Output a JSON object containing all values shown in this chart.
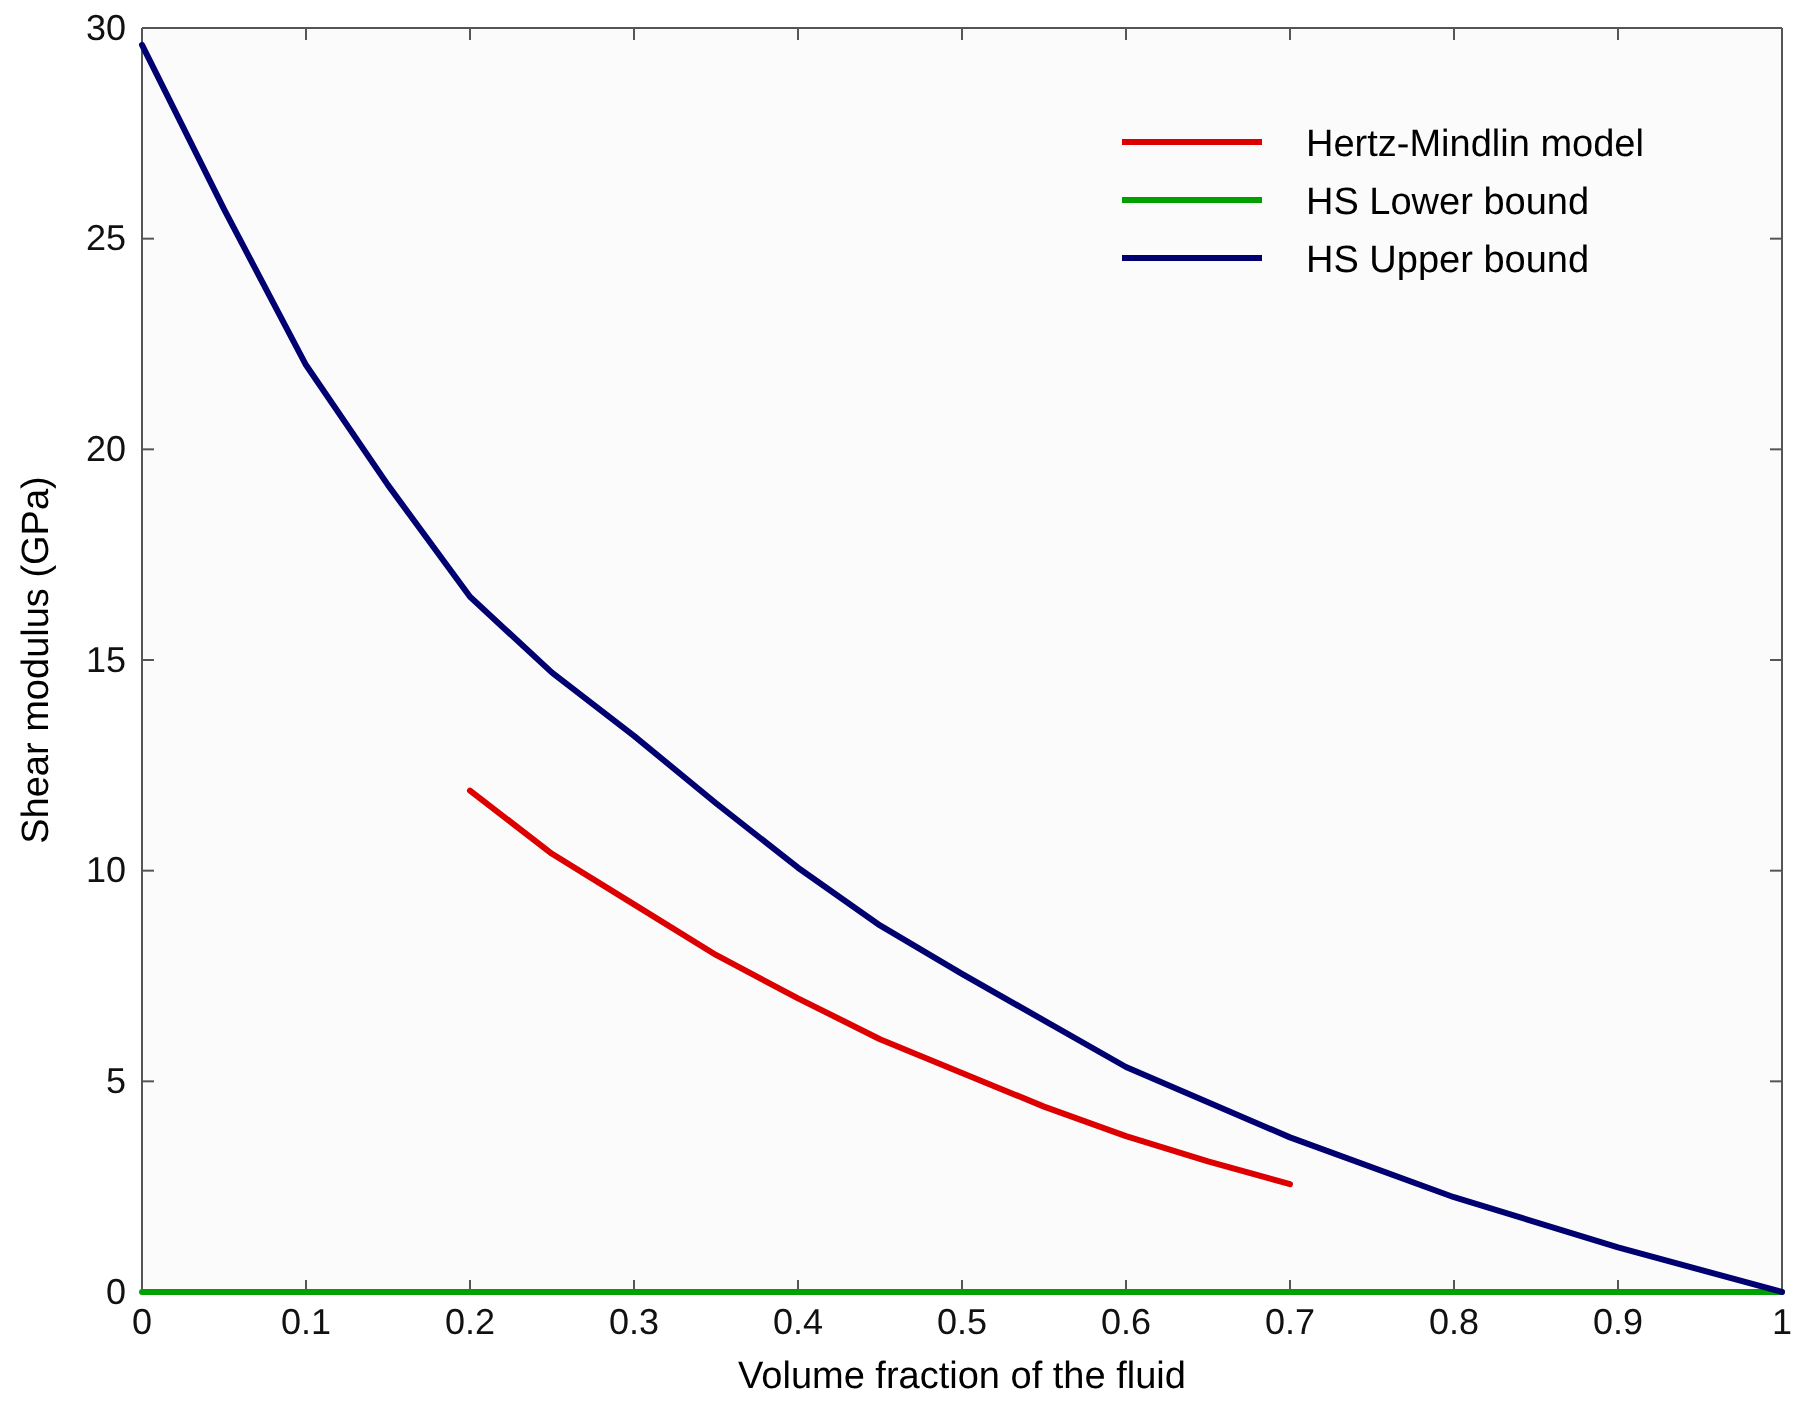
{
  "chart_data": {
    "type": "line",
    "xlabel": "Volume fraction of the fluid",
    "ylabel": "Shear modulus (GPa)",
    "xlim": [
      0,
      1
    ],
    "ylim": [
      0,
      30
    ],
    "xticks": [
      0,
      0.1,
      0.2,
      0.3,
      0.4,
      0.5,
      0.6,
      0.7,
      0.8,
      0.9,
      1
    ],
    "yticks": [
      0,
      5,
      10,
      15,
      20,
      25,
      30
    ],
    "grid": false,
    "legend": "top right",
    "line_style": "solid",
    "marker": "none",
    "series": [
      {
        "name": "Hertz-Mindlin model",
        "color": "#dd0000",
        "x": [
          0.2,
          0.25,
          0.3,
          0.35,
          0.4,
          0.45,
          0.5,
          0.55,
          0.6,
          0.65,
          0.7
        ],
        "values": [
          11.9,
          10.4,
          9.2,
          8.0,
          6.97,
          6.0,
          5.2,
          4.4,
          3.7,
          3.1,
          2.56
        ]
      },
      {
        "name": "HS Lower bound",
        "color": "#00a000",
        "x": [
          0,
          1
        ],
        "values": [
          0,
          0
        ]
      },
      {
        "name": "HS Upper bound",
        "color": "#000070",
        "x": [
          0,
          0.05,
          0.1,
          0.15,
          0.2,
          0.25,
          0.3,
          0.35,
          0.4,
          0.45,
          0.5,
          0.6,
          0.7,
          0.8,
          0.9,
          1
        ],
        "values": [
          29.6,
          25.7,
          22.0,
          19.15,
          16.5,
          14.7,
          13.2,
          11.6,
          10.07,
          8.7,
          7.55,
          5.34,
          3.67,
          2.25,
          1.06,
          0
        ]
      }
    ]
  }
}
